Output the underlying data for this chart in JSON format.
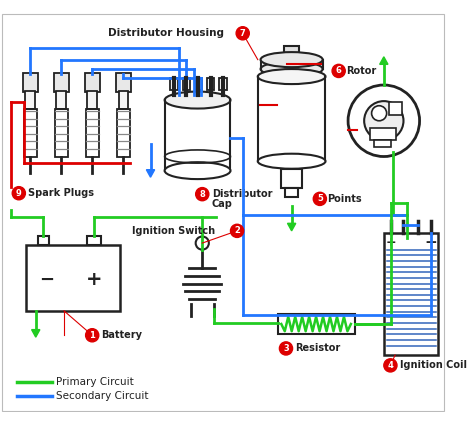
{
  "bg_color": "#ffffff",
  "primary_color": "#22cc22",
  "secondary_color": "#2277ff",
  "red_color": "#dd0000",
  "dark_color": "#222222",
  "label_bg": "#dd0000",
  "legend_primary": "Primary Circuit",
  "legend_secondary": "Secondary Circuit",
  "labels": {
    "1": "Battery",
    "2": "Ignition Switch",
    "3": "Resistor",
    "4": "Ignition Coil",
    "5": "Points",
    "6": "Rotor",
    "7": "Distributor Housing",
    "8": "Distributor\nCap",
    "9": "Spark Plugs"
  }
}
